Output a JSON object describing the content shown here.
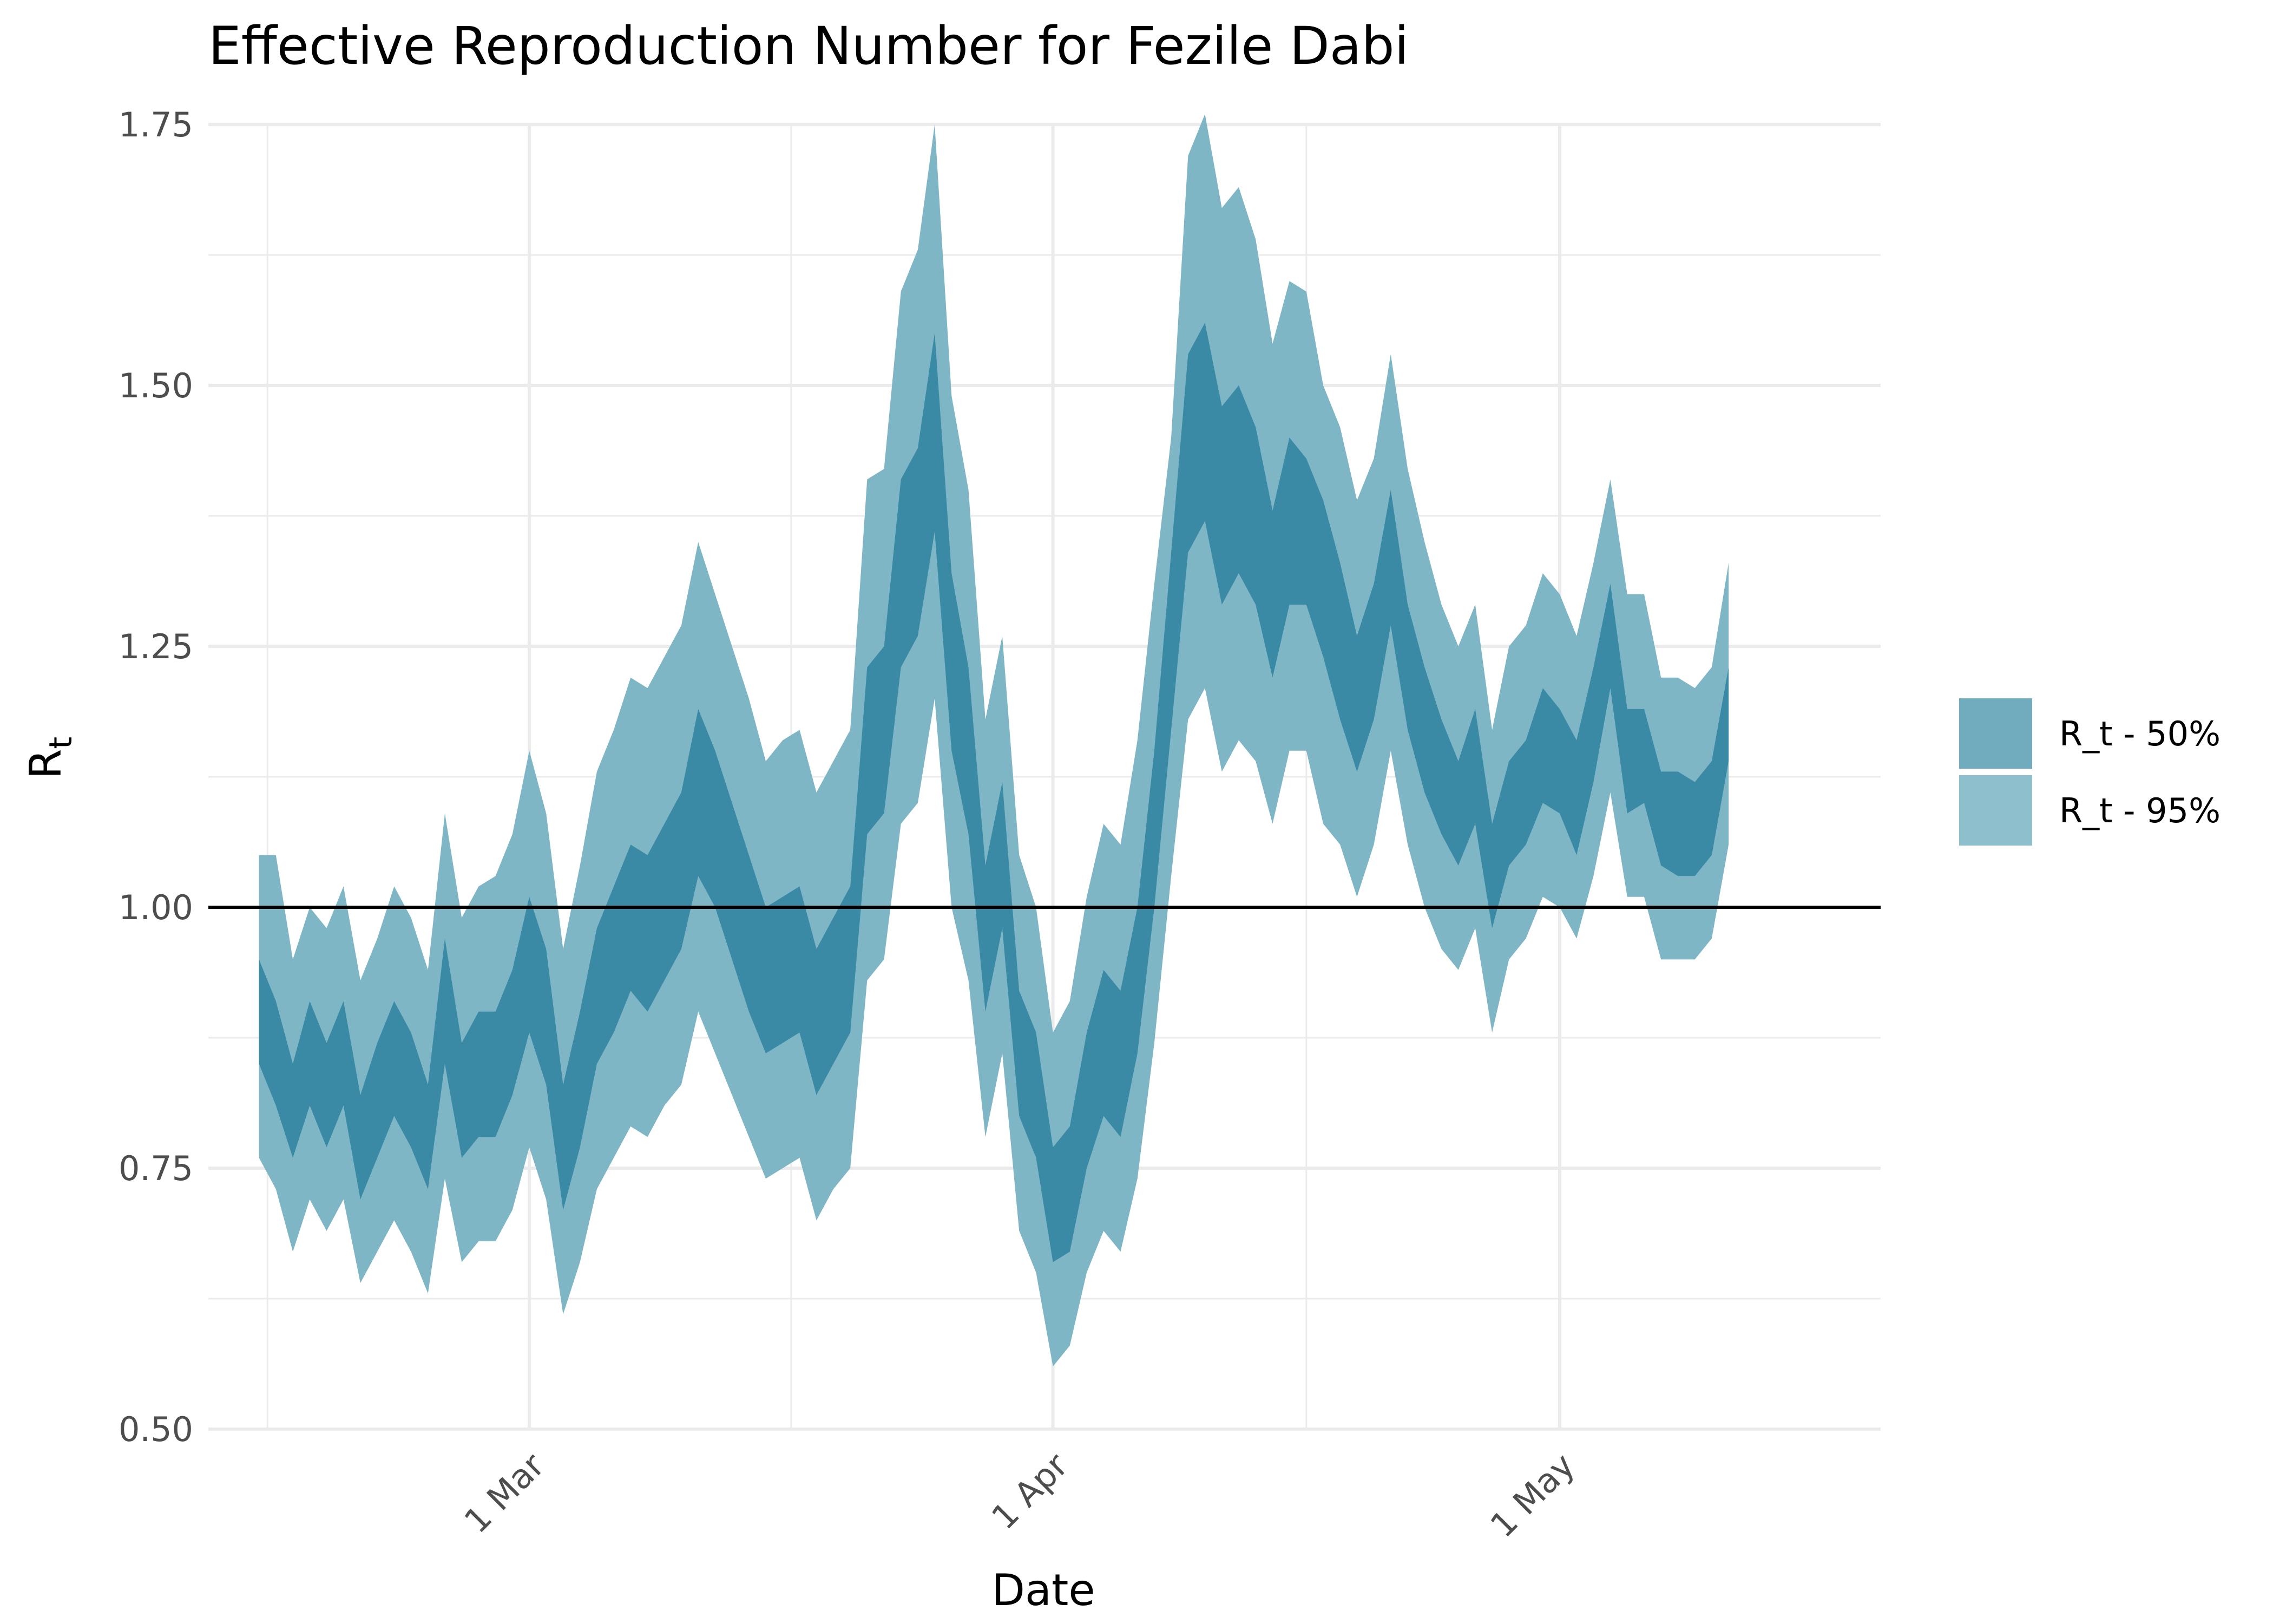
{
  "chart_data": {
    "type": "area",
    "title": "Effective Reproduction Number for Fezile Dabi",
    "xlabel": "Date",
    "ylabel": "R",
    "ylabel_subscript": "t",
    "ylim": [
      0.5,
      1.75
    ],
    "yticks": [
      "0.50",
      "0.75",
      "1.00",
      "1.25",
      "1.50",
      "1.75"
    ],
    "xlim": [
      "2020-02-11",
      "2020-05-20"
    ],
    "xticks": [
      {
        "date": "2020-03-01",
        "label": "1 Mar"
      },
      {
        "date": "2020-04-01",
        "label": "1 Apr"
      },
      {
        "date": "2020-05-01",
        "label": "1 May"
      }
    ],
    "reference_line": 1.0,
    "grid": true,
    "legend_position": "right",
    "colors": {
      "band50": "#3a8aa5",
      "band95": "#7eb6c6",
      "refline": "#000000"
    },
    "series": [
      {
        "name": "R_t - 50%",
        "kind": "band"
      },
      {
        "name": "R_t - 95%",
        "kind": "band"
      }
    ],
    "x": [
      "2020-02-14",
      "2020-02-15",
      "2020-02-16",
      "2020-02-17",
      "2020-02-18",
      "2020-02-19",
      "2020-02-20",
      "2020-02-21",
      "2020-02-22",
      "2020-02-23",
      "2020-02-24",
      "2020-02-25",
      "2020-02-26",
      "2020-02-27",
      "2020-02-28",
      "2020-02-29",
      "2020-03-01",
      "2020-03-02",
      "2020-03-03",
      "2020-03-04",
      "2020-03-05",
      "2020-03-06",
      "2020-03-07",
      "2020-03-08",
      "2020-03-09",
      "2020-03-10",
      "2020-03-11",
      "2020-03-12",
      "2020-03-13",
      "2020-03-14",
      "2020-03-15",
      "2020-03-16",
      "2020-03-17",
      "2020-03-18",
      "2020-03-19",
      "2020-03-20",
      "2020-03-21",
      "2020-03-22",
      "2020-03-23",
      "2020-03-24",
      "2020-03-25",
      "2020-03-26",
      "2020-03-27",
      "2020-03-28",
      "2020-03-29",
      "2020-03-30",
      "2020-03-31",
      "2020-04-01",
      "2020-04-02",
      "2020-04-03",
      "2020-04-04",
      "2020-04-05",
      "2020-04-06",
      "2020-04-07",
      "2020-04-08",
      "2020-04-09",
      "2020-04-10",
      "2020-04-11",
      "2020-04-12",
      "2020-04-13",
      "2020-04-14",
      "2020-04-15",
      "2020-04-16",
      "2020-04-17",
      "2020-04-18",
      "2020-04-19",
      "2020-04-20",
      "2020-04-21",
      "2020-04-22",
      "2020-04-23",
      "2020-04-24",
      "2020-04-25",
      "2020-04-26",
      "2020-04-27",
      "2020-04-28",
      "2020-04-29",
      "2020-04-30",
      "2020-05-01",
      "2020-05-02",
      "2020-05-03",
      "2020-05-04",
      "2020-05-05",
      "2020-05-06",
      "2020-05-07",
      "2020-05-08",
      "2020-05-09",
      "2020-05-10",
      "2020-05-11"
    ],
    "band50_lower": [
      0.85,
      0.81,
      0.76,
      0.81,
      0.77,
      0.81,
      0.72,
      0.76,
      0.8,
      0.77,
      0.73,
      0.85,
      0.76,
      0.78,
      0.78,
      0.82,
      0.88,
      0.83,
      0.71,
      0.77,
      0.85,
      0.88,
      0.92,
      0.9,
      0.93,
      0.96,
      1.03,
      1.0,
      0.95,
      0.9,
      0.86,
      0.87,
      0.88,
      0.82,
      0.85,
      0.88,
      1.07,
      1.09,
      1.23,
      1.26,
      1.36,
      1.15,
      1.07,
      0.9,
      0.98,
      0.8,
      0.76,
      0.66,
      0.67,
      0.75,
      0.8,
      0.78,
      0.86,
      1.0,
      1.17,
      1.34,
      1.37,
      1.29,
      1.32,
      1.29,
      1.22,
      1.29,
      1.29,
      1.24,
      1.18,
      1.13,
      1.18,
      1.27,
      1.17,
      1.11,
      1.07,
      1.04,
      1.08,
      0.98,
      1.04,
      1.06,
      1.1,
      1.09,
      1.05,
      1.12,
      1.21,
      1.09,
      1.1,
      1.04,
      1.03,
      1.03,
      1.05,
      1.14
    ],
    "band50_upper": [
      0.95,
      0.91,
      0.85,
      0.91,
      0.87,
      0.91,
      0.82,
      0.87,
      0.91,
      0.88,
      0.83,
      0.97,
      0.87,
      0.9,
      0.9,
      0.94,
      1.01,
      0.96,
      0.83,
      0.9,
      0.98,
      1.02,
      1.06,
      1.05,
      1.08,
      1.11,
      1.19,
      1.15,
      1.1,
      1.05,
      1.0,
      1.01,
      1.02,
      0.96,
      0.99,
      1.02,
      1.23,
      1.25,
      1.41,
      1.44,
      1.55,
      1.32,
      1.23,
      1.04,
      1.12,
      0.92,
      0.88,
      0.77,
      0.79,
      0.88,
      0.94,
      0.92,
      1.0,
      1.15,
      1.34,
      1.53,
      1.56,
      1.48,
      1.5,
      1.46,
      1.38,
      1.45,
      1.43,
      1.39,
      1.33,
      1.26,
      1.31,
      1.4,
      1.29,
      1.23,
      1.18,
      1.14,
      1.19,
      1.08,
      1.14,
      1.16,
      1.21,
      1.19,
      1.16,
      1.23,
      1.31,
      1.19,
      1.19,
      1.13,
      1.13,
      1.12,
      1.14,
      1.23
    ],
    "band95_lower": [
      0.76,
      0.73,
      0.67,
      0.72,
      0.69,
      0.72,
      0.64,
      0.67,
      0.7,
      0.67,
      0.63,
      0.74,
      0.66,
      0.68,
      0.68,
      0.71,
      0.77,
      0.72,
      0.61,
      0.66,
      0.73,
      0.76,
      0.79,
      0.78,
      0.81,
      0.83,
      0.9,
      0.86,
      0.82,
      0.78,
      0.74,
      0.75,
      0.76,
      0.7,
      0.73,
      0.75,
      0.93,
      0.95,
      1.08,
      1.1,
      1.2,
      1.0,
      0.93,
      0.78,
      0.86,
      0.69,
      0.65,
      0.56,
      0.58,
      0.65,
      0.69,
      0.67,
      0.74,
      0.87,
      1.03,
      1.18,
      1.21,
      1.13,
      1.16,
      1.14,
      1.08,
      1.15,
      1.15,
      1.08,
      1.06,
      1.01,
      1.06,
      1.15,
      1.06,
      1.0,
      0.96,
      0.94,
      0.98,
      0.88,
      0.95,
      0.97,
      1.01,
      1.0,
      0.97,
      1.03,
      1.11,
      1.01,
      1.01,
      0.95,
      0.95,
      0.95,
      0.97,
      1.06
    ],
    "band95_upper": [
      1.05,
      1.05,
      0.95,
      1.0,
      0.98,
      1.02,
      0.93,
      0.97,
      1.02,
      0.99,
      0.94,
      1.09,
      0.99,
      1.02,
      1.03,
      1.07,
      1.15,
      1.09,
      0.96,
      1.04,
      1.13,
      1.17,
      1.22,
      1.21,
      1.24,
      1.27,
      1.35,
      1.3,
      1.25,
      1.2,
      1.14,
      1.16,
      1.17,
      1.11,
      1.14,
      1.17,
      1.41,
      1.42,
      1.59,
      1.63,
      1.75,
      1.49,
      1.4,
      1.18,
      1.26,
      1.05,
      1.0,
      0.88,
      0.91,
      1.01,
      1.08,
      1.06,
      1.16,
      1.31,
      1.45,
      1.72,
      1.76,
      1.67,
      1.69,
      1.64,
      1.54,
      1.6,
      1.59,
      1.5,
      1.46,
      1.39,
      1.43,
      1.53,
      1.42,
      1.35,
      1.29,
      1.25,
      1.29,
      1.17,
      1.25,
      1.27,
      1.32,
      1.3,
      1.26,
      1.33,
      1.41,
      1.3,
      1.3,
      1.22,
      1.22,
      1.21,
      1.23,
      1.33
    ]
  }
}
